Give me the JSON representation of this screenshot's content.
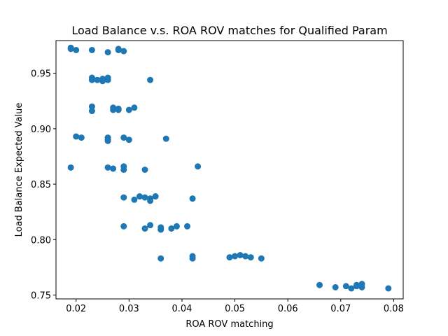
{
  "chart_data": {
    "type": "scatter",
    "title": "Load Balance v.s. ROA ROV matches for Qualified Param",
    "xlabel": "ROA ROV matching",
    "ylabel": "Load Balance Expected Value",
    "xlim": [
      0.0162,
      0.0818
    ],
    "ylim": [
      0.7465,
      0.9795
    ],
    "xticks": [
      {
        "value": 0.01,
        "label": "0.01"
      },
      {
        "value": 0.02,
        "label": "0.02"
      },
      {
        "value": 0.03,
        "label": "0.03"
      },
      {
        "value": 0.04,
        "label": "0.04"
      },
      {
        "value": 0.05,
        "label": "0.05"
      },
      {
        "value": 0.06,
        "label": "0.06"
      },
      {
        "value": 0.07,
        "label": "0.07"
      },
      {
        "value": 0.08,
        "label": "0.08"
      }
    ],
    "yticks": [
      {
        "value": 0.75,
        "label": "0.75"
      },
      {
        "value": 0.8,
        "label": "0.80"
      },
      {
        "value": 0.85,
        "label": "0.85"
      },
      {
        "value": 0.9,
        "label": "0.90"
      },
      {
        "value": 0.95,
        "label": "0.95"
      }
    ],
    "grid": false,
    "marker_color": "#1f77b4",
    "points": [
      [
        0.019,
        0.973
      ],
      [
        0.019,
        0.972
      ],
      [
        0.02,
        0.971
      ],
      [
        0.023,
        0.971
      ],
      [
        0.026,
        0.969
      ],
      [
        0.028,
        0.972
      ],
      [
        0.028,
        0.971
      ],
      [
        0.029,
        0.97
      ],
      [
        0.023,
        0.946
      ],
      [
        0.023,
        0.944
      ],
      [
        0.024,
        0.944
      ],
      [
        0.025,
        0.945
      ],
      [
        0.025,
        0.943
      ],
      [
        0.026,
        0.946
      ],
      [
        0.026,
        0.944
      ],
      [
        0.034,
        0.944
      ],
      [
        0.023,
        0.92
      ],
      [
        0.023,
        0.916
      ],
      [
        0.027,
        0.919
      ],
      [
        0.027,
        0.917
      ],
      [
        0.028,
        0.918
      ],
      [
        0.028,
        0.917
      ],
      [
        0.03,
        0.917
      ],
      [
        0.031,
        0.919
      ],
      [
        0.02,
        0.893
      ],
      [
        0.021,
        0.892
      ],
      [
        0.026,
        0.892
      ],
      [
        0.026,
        0.89
      ],
      [
        0.026,
        0.889
      ],
      [
        0.029,
        0.892
      ],
      [
        0.03,
        0.89
      ],
      [
        0.037,
        0.891
      ],
      [
        0.019,
        0.865
      ],
      [
        0.026,
        0.865
      ],
      [
        0.027,
        0.864
      ],
      [
        0.029,
        0.866
      ],
      [
        0.029,
        0.863
      ],
      [
        0.033,
        0.863
      ],
      [
        0.043,
        0.866
      ],
      [
        0.029,
        0.838
      ],
      [
        0.031,
        0.836
      ],
      [
        0.032,
        0.839
      ],
      [
        0.033,
        0.838
      ],
      [
        0.034,
        0.837
      ],
      [
        0.034,
        0.835
      ],
      [
        0.035,
        0.839
      ],
      [
        0.042,
        0.837
      ],
      [
        0.029,
        0.812
      ],
      [
        0.033,
        0.81
      ],
      [
        0.034,
        0.813
      ],
      [
        0.036,
        0.811
      ],
      [
        0.036,
        0.809
      ],
      [
        0.038,
        0.81
      ],
      [
        0.039,
        0.812
      ],
      [
        0.041,
        0.812
      ],
      [
        0.036,
        0.783
      ],
      [
        0.042,
        0.785
      ],
      [
        0.042,
        0.783
      ],
      [
        0.049,
        0.784
      ],
      [
        0.05,
        0.785
      ],
      [
        0.051,
        0.786
      ],
      [
        0.052,
        0.785
      ],
      [
        0.053,
        0.784
      ],
      [
        0.055,
        0.783
      ],
      [
        0.066,
        0.759
      ],
      [
        0.069,
        0.757
      ],
      [
        0.071,
        0.758
      ],
      [
        0.072,
        0.756
      ],
      [
        0.073,
        0.759
      ],
      [
        0.073,
        0.758
      ],
      [
        0.074,
        0.76
      ],
      [
        0.074,
        0.757
      ],
      [
        0.079,
        0.756
      ]
    ]
  }
}
